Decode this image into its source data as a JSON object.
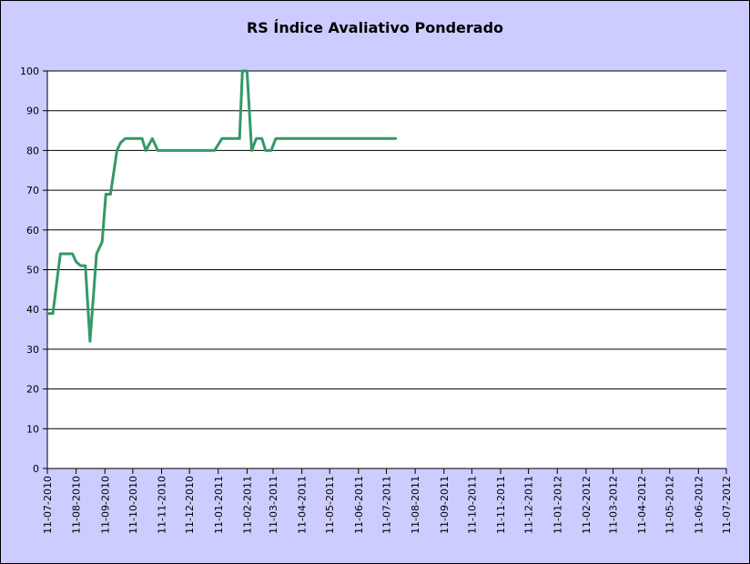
{
  "chart_data": {
    "type": "line",
    "title": "RS Índice Avaliativo Ponderado",
    "xlabel": "",
    "ylabel": "",
    "ylim": [
      0,
      100
    ],
    "yticks": [
      0,
      10,
      20,
      30,
      40,
      50,
      60,
      70,
      80,
      90,
      100
    ],
    "xlim": [
      "2010-07-11",
      "2012-07-11"
    ],
    "xtick_labels": [
      "11-07-2010",
      "11-08-2010",
      "11-09-2010",
      "11-10-2010",
      "11-11-2010",
      "11-12-2010",
      "11-01-2011",
      "11-02-2011",
      "11-03-2011",
      "11-04-2011",
      "11-05-2011",
      "11-06-2011",
      "11-07-2011",
      "11-08-2011",
      "11-09-2011",
      "11-10-2011",
      "11-11-2011",
      "11-12-2011",
      "11-01-2012",
      "11-02-2012",
      "11-03-2012",
      "11-04-2012",
      "11-05-2012",
      "11-06-2012",
      "11-07-2012"
    ],
    "grid": true,
    "legend": "none",
    "colors": {
      "background": "#ccccff",
      "plot": "#ffffff",
      "line": "#339966",
      "grid": "#000000"
    },
    "series": [
      {
        "x": [
          "2010-07-11",
          "2010-07-17",
          "2010-07-25",
          "2010-08-01",
          "2010-08-07",
          "2010-08-11",
          "2010-08-16",
          "2010-08-21",
          "2010-08-26",
          "2010-09-02",
          "2010-09-08",
          "2010-09-12",
          "2010-09-17",
          "2010-09-24",
          "2010-09-28",
          "2010-10-03",
          "2010-10-10",
          "2010-10-21",
          "2010-10-25",
          "2010-11-01",
          "2010-11-07",
          "2010-11-21",
          "2010-12-11",
          "2011-01-01",
          "2011-01-07",
          "2011-01-15",
          "2011-01-29",
          "2011-02-03",
          "2011-02-06",
          "2011-02-11",
          "2011-02-16",
          "2011-02-21",
          "2011-02-27",
          "2011-03-03",
          "2011-03-09",
          "2011-03-14",
          "2011-03-19",
          "2011-03-24",
          "2011-04-01",
          "2011-05-01",
          "2011-06-01",
          "2011-07-01",
          "2011-07-21"
        ],
        "values": [
          39,
          39,
          54,
          54,
          54,
          52,
          51,
          51,
          32,
          54,
          57,
          69,
          69,
          80,
          82,
          83,
          83,
          83,
          80,
          83,
          80,
          80,
          80,
          80,
          80,
          83,
          83,
          83,
          100,
          100,
          80,
          83,
          83,
          80,
          80,
          83,
          83,
          83,
          83,
          83,
          83,
          83,
          83
        ]
      }
    ]
  }
}
